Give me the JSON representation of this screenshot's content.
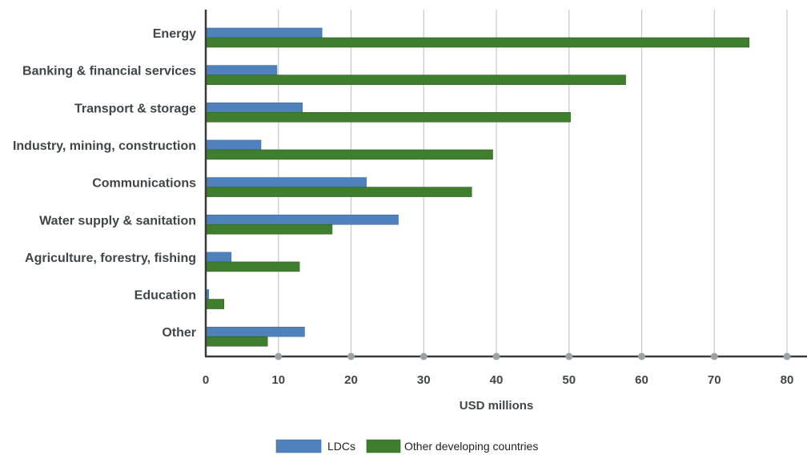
{
  "chart_data": {
    "type": "bar",
    "orientation": "horizontal",
    "categories": [
      "Energy",
      "Banking & financial services",
      "Transport & storage",
      "Industry, mining, construction",
      "Communications",
      "Water supply & sanitation",
      "Agriculture, forestry, fishing",
      "Education",
      "Other"
    ],
    "series": [
      {
        "name": "LDCs",
        "color": "#4f81bd",
        "values": [
          16,
          9.8,
          13.3,
          7.6,
          22.1,
          26.5,
          3.5,
          0.4,
          13.6
        ]
      },
      {
        "name": "Other developing countries",
        "color": "#3e7e2e",
        "values": [
          74.8,
          57.8,
          50.2,
          39.5,
          36.6,
          17.4,
          12.9,
          2.5,
          8.5
        ]
      }
    ],
    "xlabel": "USD millions",
    "ylabel": "",
    "xlim": [
      0,
      80
    ],
    "xticks": [
      0,
      10,
      20,
      30,
      40,
      50,
      60,
      70,
      80
    ],
    "grid": "vertical",
    "legend": "bottom-center"
  }
}
